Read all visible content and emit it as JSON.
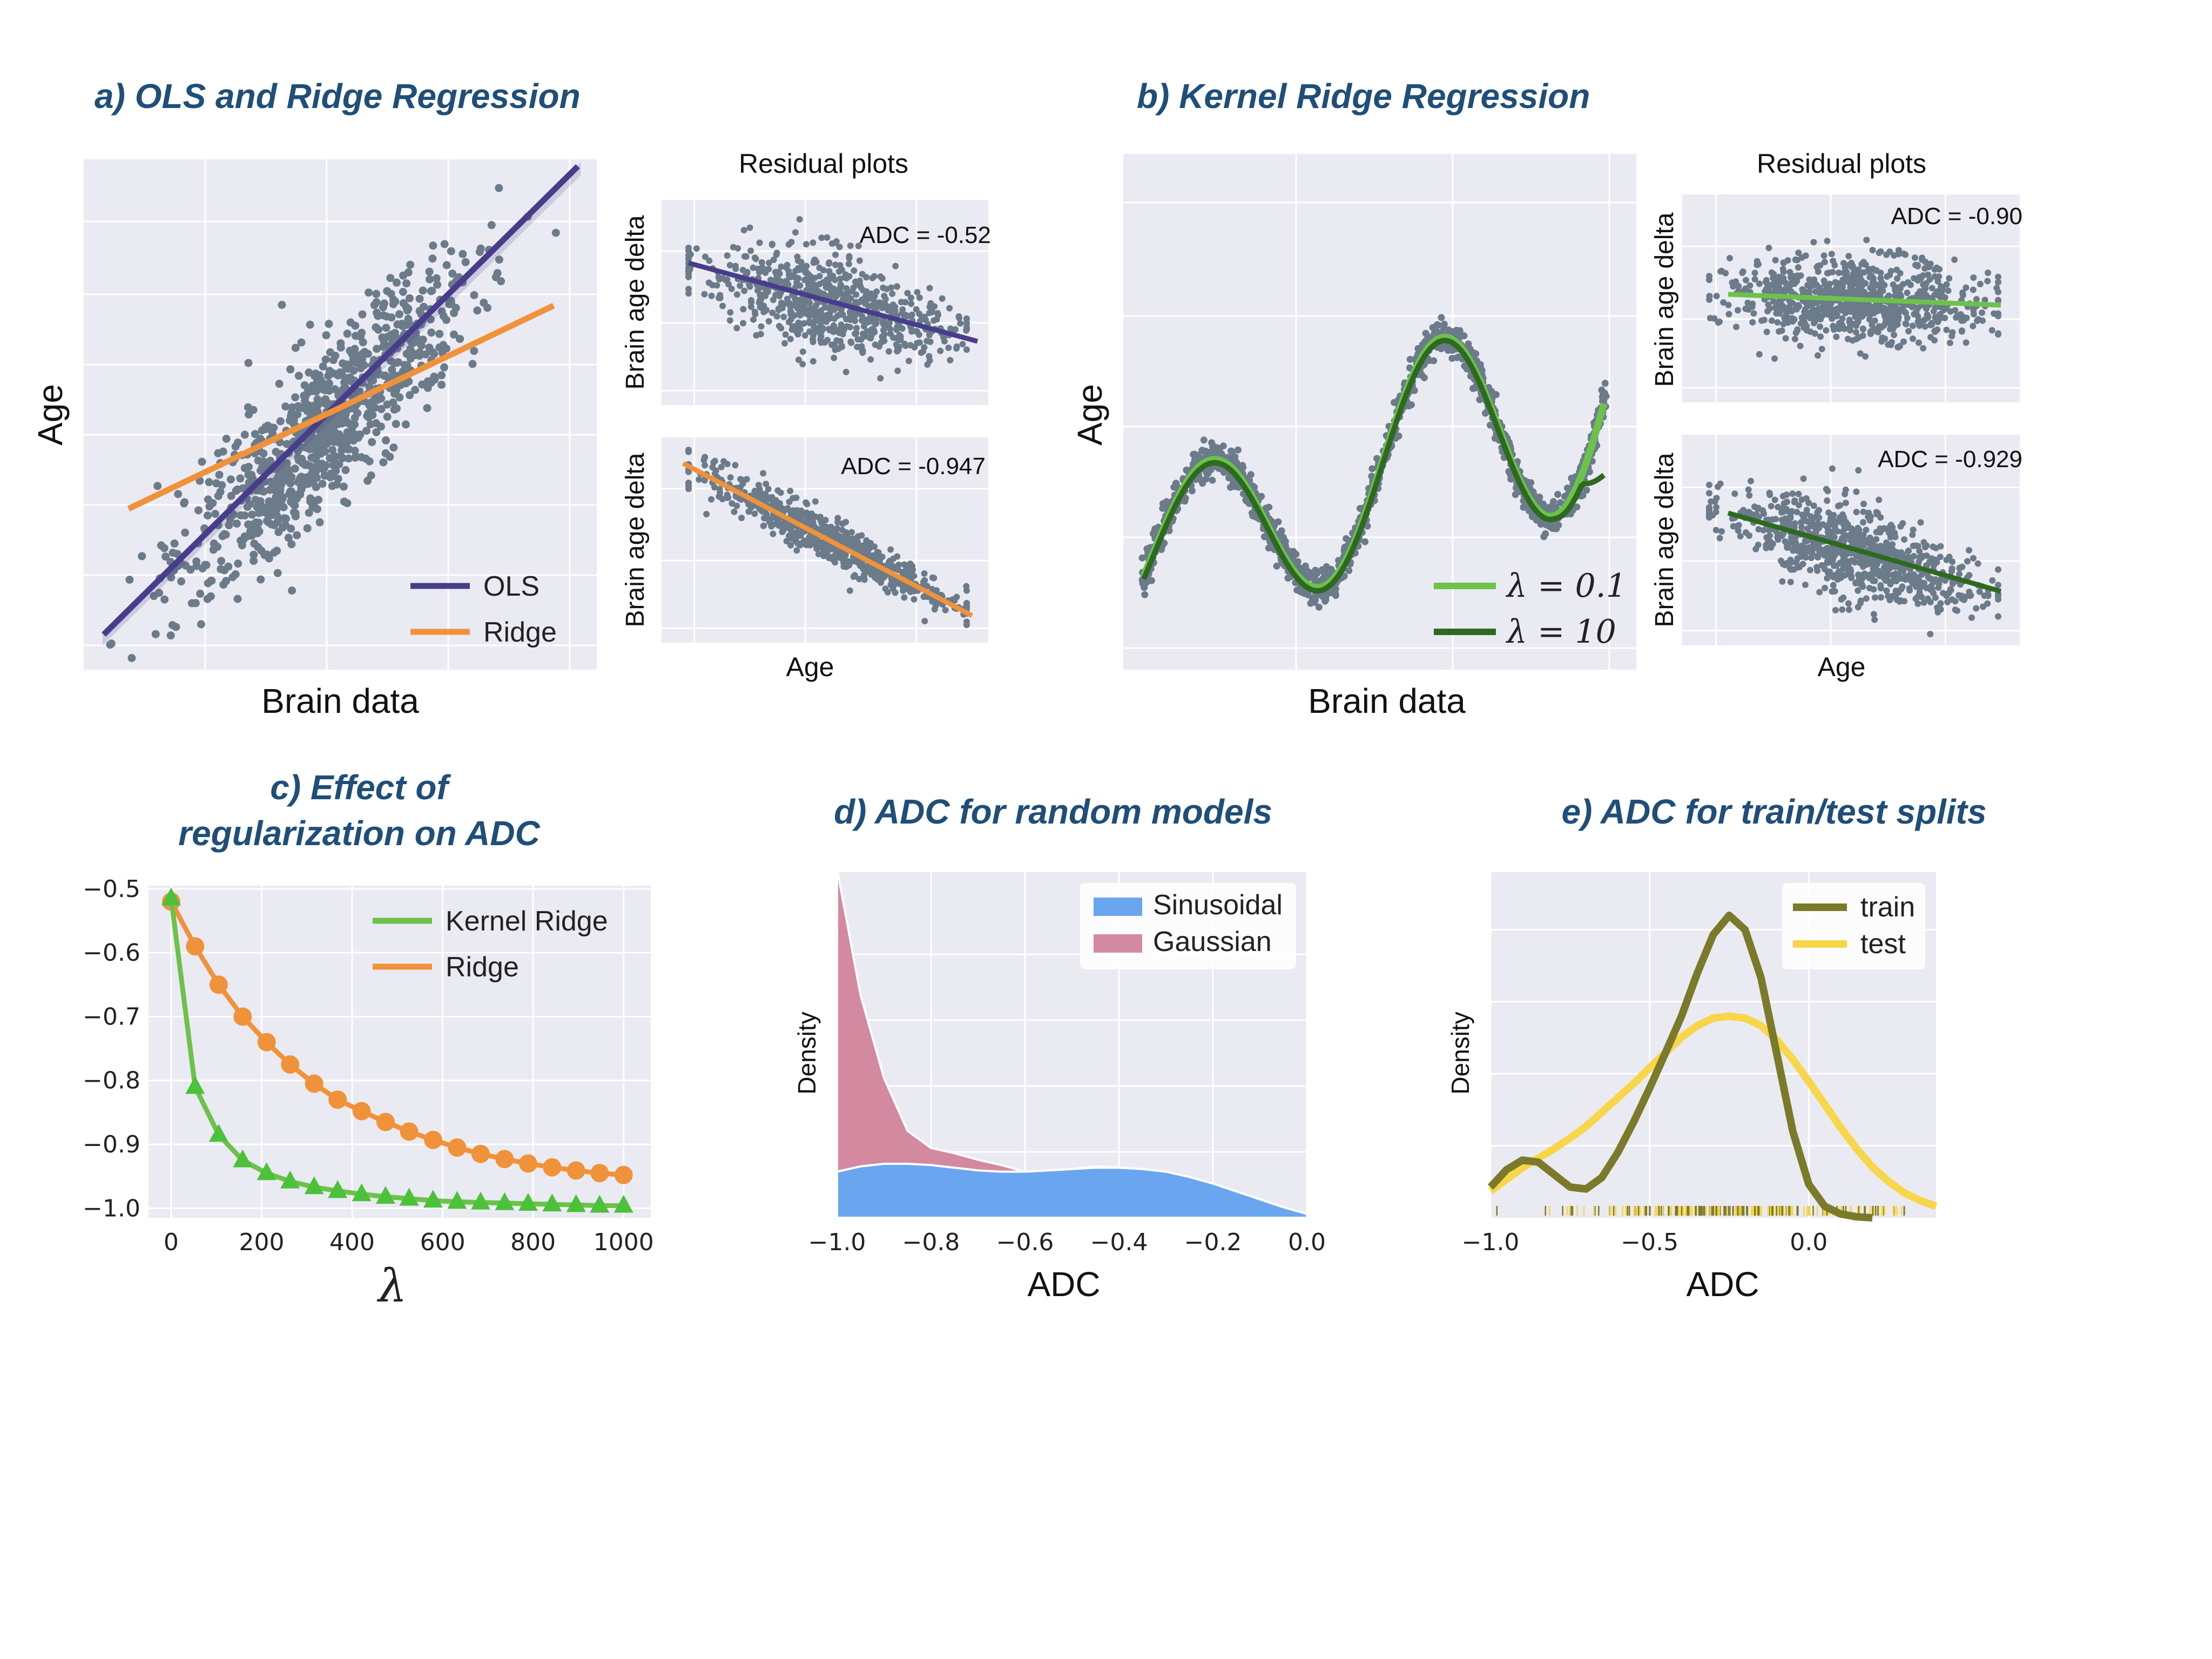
{
  "colors": {
    "panel_bg": "#eaeaf2",
    "grid": "#ffffff",
    "title": "#1f4e79",
    "points": "#6b7b8a",
    "ols": "#483d8b",
    "ridge": "#f0923a",
    "kr_light": "#6cc24a",
    "kr_dark": "#2d6a1f",
    "sinusoidal": "#6aa6f0",
    "gaussian": "#d38aa0",
    "train": "#7a7a2a",
    "test": "#f7d64a"
  },
  "panel_a": {
    "title": "a) OLS and Ridge Regression",
    "xlabel": "Brain data",
    "ylabel": "Age",
    "legend": [
      "OLS",
      "Ridge"
    ],
    "residuals_title": "Residual plots",
    "residual_ylabel": "Brain age delta",
    "residual_xlabel": "Age",
    "adc_top": "ADC = -0.52",
    "adc_bottom": "ADC = -0.947"
  },
  "panel_b": {
    "title": "b) Kernel Ridge Regression",
    "xlabel": "Brain data",
    "ylabel": "Age",
    "legend": [
      "λ = 0.1",
      "λ = 10"
    ],
    "residuals_title": "Residual plots",
    "residual_ylabel": "Brain age delta",
    "residual_xlabel": "Age",
    "adc_top": "ADC = -0.90",
    "adc_bottom": "ADC = -0.929"
  },
  "chart_data": [
    {
      "panel": "c",
      "type": "line",
      "title": "c) Effect of regularization on ADC",
      "title_lines": [
        "c) Effect of",
        "regularization on ADC"
      ],
      "xlabel": "λ",
      "ylabel": "",
      "xlim": [
        -50,
        1060
      ],
      "ylim": [
        -1.015,
        -0.495
      ],
      "xticks": [
        "0",
        "200",
        "400",
        "600",
        "800",
        "1000"
      ],
      "yticks": [
        "−0.5",
        "−0.6",
        "−0.7",
        "−0.8",
        "−0.9",
        "−1.0"
      ],
      "legend_position": "top-right",
      "x": [
        0,
        53,
        105,
        158,
        211,
        263,
        316,
        368,
        421,
        474,
        526,
        579,
        632,
        684,
        737,
        789,
        842,
        895,
        947,
        1000
      ],
      "series": [
        {
          "name": "Kernel Ridge",
          "marker": "triangle",
          "values": [
            -0.515,
            -0.81,
            -0.885,
            -0.925,
            -0.945,
            -0.958,
            -0.967,
            -0.973,
            -0.978,
            -0.982,
            -0.985,
            -0.988,
            -0.99,
            -0.991,
            -0.992,
            -0.993,
            -0.994,
            -0.995,
            -0.996,
            -0.996
          ]
        },
        {
          "name": "Ridge",
          "marker": "circle",
          "values": [
            -0.52,
            -0.59,
            -0.65,
            -0.7,
            -0.74,
            -0.775,
            -0.805,
            -0.83,
            -0.848,
            -0.865,
            -0.88,
            -0.893,
            -0.905,
            -0.915,
            -0.923,
            -0.93,
            -0.936,
            -0.941,
            -0.945,
            -0.948
          ]
        }
      ]
    },
    {
      "panel": "d",
      "type": "area",
      "title": "d) ADC for random models",
      "xlabel": "ADC",
      "ylabel": "Density",
      "xlim": [
        -1.0,
        0.0
      ],
      "xticks": [
        "−1.0",
        "−0.8",
        "−0.6",
        "−0.4",
        "−0.2",
        "0.0"
      ],
      "legend_position": "top-right",
      "stacked": true,
      "x": [
        -1.0,
        -0.95,
        -0.9,
        -0.85,
        -0.8,
        -0.75,
        -0.7,
        -0.65,
        -0.6,
        -0.55,
        -0.5,
        -0.45,
        -0.4,
        -0.35,
        -0.3,
        -0.25,
        -0.2,
        -0.15,
        -0.1,
        -0.05,
        0.0
      ],
      "series": [
        {
          "name": "Sinusoidal",
          "values": [
            0.7,
            0.78,
            0.82,
            0.82,
            0.8,
            0.76,
            0.72,
            0.7,
            0.7,
            0.72,
            0.74,
            0.76,
            0.76,
            0.74,
            0.7,
            0.62,
            0.52,
            0.4,
            0.28,
            0.16,
            0.06
          ]
        },
        {
          "name": "Gaussian",
          "values": [
            4.6,
            2.6,
            1.3,
            0.5,
            0.26,
            0.22,
            0.16,
            0.1,
            0.0,
            0.0,
            0.0,
            0.02,
            0.0,
            0.0,
            0.0,
            0.0,
            0.0,
            0.0,
            0.0,
            0.0,
            0.0
          ]
        }
      ]
    },
    {
      "panel": "e",
      "type": "line",
      "title": "e) ADC for train/test splits",
      "xlabel": "ADC",
      "ylabel": "Density",
      "xlim": [
        -1.0,
        0.4
      ],
      "xticks": [
        "−1.0",
        "−0.5",
        "0.0"
      ],
      "legend_position": "top-right",
      "x": [
        -1.0,
        -0.95,
        -0.9,
        -0.85,
        -0.8,
        -0.75,
        -0.7,
        -0.65,
        -0.6,
        -0.55,
        -0.5,
        -0.45,
        -0.4,
        -0.35,
        -0.3,
        -0.25,
        -0.2,
        -0.15,
        -0.1,
        -0.05,
        0.0,
        0.05,
        0.1,
        0.15,
        0.2,
        0.25,
        0.3,
        0.35,
        0.4
      ],
      "series": [
        {
          "name": "train",
          "values": [
            0.32,
            0.5,
            0.6,
            0.58,
            0.45,
            0.32,
            0.3,
            0.42,
            0.68,
            1.0,
            1.35,
            1.72,
            2.1,
            2.55,
            2.95,
            3.15,
            3.0,
            2.5,
            1.7,
            0.9,
            0.35,
            0.12,
            0.04,
            0.01,
            0.0,
            0.0,
            0.0,
            0.0,
            0.0
          ]
        },
        {
          "name": "test",
          "values": [
            0.28,
            0.4,
            0.52,
            0.62,
            0.72,
            0.83,
            0.95,
            1.1,
            1.25,
            1.4,
            1.56,
            1.72,
            1.88,
            2.0,
            2.08,
            2.1,
            2.08,
            2.0,
            1.85,
            1.65,
            1.42,
            1.18,
            0.94,
            0.72,
            0.53,
            0.38,
            0.26,
            0.18,
            0.12
          ]
        }
      ]
    }
  ]
}
